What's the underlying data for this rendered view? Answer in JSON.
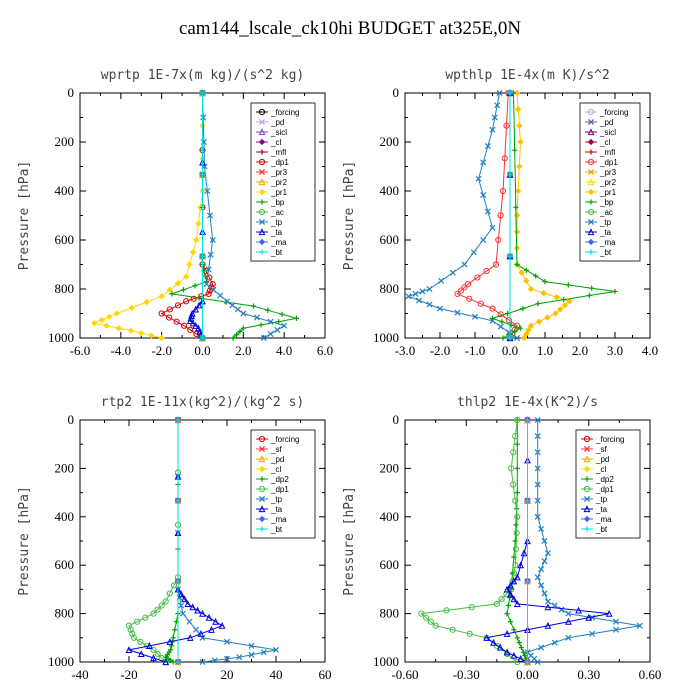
{
  "title": "cam144_lscale_ck10hi  BUDGET at325E,0N",
  "chart_data": [
    {
      "type": "line",
      "title": "wprtp  1E-7x(m kg)/(s^2 kg)",
      "ylabel": "Pressure [hPa]",
      "xlim": [
        -6,
        6
      ],
      "xticks": [
        "-6.0",
        "-4.0",
        "-2.0",
        "0.0",
        "2.0",
        "4.0",
        "6.0"
      ],
      "xtick_values": [
        -6,
        -4,
        -2,
        0,
        2,
        4,
        6
      ],
      "ylim": [
        1000,
        0
      ],
      "yticks": [
        0,
        200,
        400,
        600,
        800,
        1000
      ],
      "legend_position": "top-right",
      "series": [
        {
          "name": "_forcing",
          "color": "#000000",
          "p": [
            0,
            1000
          ],
          "v": [
            0,
            0
          ]
        },
        {
          "name": "_pd",
          "color": "#c8a0e0",
          "p": [
            0,
            1000
          ],
          "v": [
            0,
            0
          ]
        },
        {
          "name": "_sicl",
          "color": "#7050c0",
          "p": [
            0,
            1000
          ],
          "v": [
            0,
            0
          ]
        },
        {
          "name": "_cl",
          "color": "#800080",
          "p": [
            0,
            1000
          ],
          "v": [
            0,
            0
          ]
        },
        {
          "name": "_mfl",
          "color": "#a00040",
          "p": [
            0,
            1000
          ],
          "v": [
            0,
            0
          ]
        },
        {
          "name": "_dp1",
          "color": "#e00000",
          "p": [
            0,
            700,
            780,
            820,
            850,
            900,
            950,
            1000
          ],
          "v": [
            0,
            0,
            0.5,
            0.3,
            -0.8,
            -2.0,
            -0.9,
            0
          ]
        },
        {
          "name": "_pr3",
          "color": "#ff3030",
          "p": [
            0,
            1000
          ],
          "v": [
            0,
            0
          ]
        },
        {
          "name": "_pr2",
          "color": "#ffa000",
          "p": [
            0,
            1000
          ],
          "v": [
            0,
            0
          ]
        },
        {
          "name": "_pr1",
          "color": "#ffd700",
          "p": [
            0,
            400,
            600,
            750,
            830,
            900,
            940,
            970,
            1000
          ],
          "v": [
            0,
            0,
            -0.3,
            -0.8,
            -2.0,
            -4.2,
            -5.3,
            -3.5,
            -2.0
          ]
        },
        {
          "name": "_bp",
          "color": "#00a000",
          "p": [
            0,
            700,
            770,
            820,
            870,
            920,
            960,
            1000
          ],
          "v": [
            0,
            0,
            0.2,
            -1.5,
            2.5,
            4.6,
            2.0,
            1.5
          ]
        },
        {
          "name": "_ac",
          "color": "#40c040",
          "p": [
            0,
            1000
          ],
          "v": [
            0,
            0
          ]
        },
        {
          "name": "_tp",
          "color": "#2080c0",
          "p": [
            0,
            300,
            600,
            780,
            850,
            900,
            950,
            1000
          ],
          "v": [
            0,
            0.1,
            0.5,
            0.2,
            1.2,
            2.0,
            4.0,
            3.0
          ]
        },
        {
          "name": "_ta",
          "color": "#0000e0",
          "p": [
            0,
            850,
            900,
            930,
            960,
            1000
          ],
          "v": [
            0,
            0,
            -0.5,
            -0.6,
            -0.2,
            0
          ]
        },
        {
          "name": "_ma",
          "color": "#4060ff",
          "p": [
            0,
            1000
          ],
          "v": [
            0,
            0
          ]
        },
        {
          "name": "_bt",
          "color": "#00e0e0",
          "p": [
            0,
            1000
          ],
          "v": [
            0,
            0
          ]
        }
      ]
    },
    {
      "type": "line",
      "title": "wpthlp  1E-4x(m K)/s^2",
      "ylabel": "Pressure [hPa]",
      "xlim": [
        -3,
        4
      ],
      "xticks": [
        "-3.0",
        "-2.0",
        "-1.0",
        "0.0",
        "1.0",
        "2.0",
        "3.0",
        "4.0"
      ],
      "xtick_values": [
        -3,
        -2,
        -1,
        0,
        1,
        2,
        3,
        4
      ],
      "ylim": [
        1000,
        0
      ],
      "yticks": [
        0,
        200,
        400,
        600,
        800,
        1000
      ],
      "legend_position": "top-right",
      "series": [
        {
          "name": "_forcing",
          "color": "#c8a0e0",
          "p": [
            0,
            1000
          ],
          "v": [
            0,
            0
          ]
        },
        {
          "name": "_pd",
          "color": "#7050c0",
          "p": [
            0,
            1000
          ],
          "v": [
            0,
            0
          ]
        },
        {
          "name": "_sicl",
          "color": "#800080",
          "p": [
            0,
            1000
          ],
          "v": [
            0,
            0
          ]
        },
        {
          "name": "_cl",
          "color": "#a00040",
          "p": [
            0,
            1000
          ],
          "v": [
            0,
            0
          ]
        },
        {
          "name": "_mfl",
          "color": "#e00000",
          "p": [
            0,
            1000
          ],
          "v": [
            0,
            0
          ]
        },
        {
          "name": "_dp1",
          "color": "#ff3030",
          "p": [
            0,
            400,
            700,
            780,
            820,
            880,
            950,
            1000
          ],
          "v": [
            -0.05,
            -0.2,
            -0.4,
            -1.2,
            -1.5,
            -0.5,
            0.2,
            0
          ]
        },
        {
          "name": "_pr3",
          "color": "#ffa000",
          "p": [
            0,
            1000
          ],
          "v": [
            0,
            0
          ]
        },
        {
          "name": "_pr2",
          "color": "#ffd700",
          "p": [
            0,
            1000
          ],
          "v": [
            0,
            0
          ]
        },
        {
          "name": "_pr1",
          "color": "#ffc000",
          "p": [
            0,
            200,
            500,
            700,
            800,
            850,
            900,
            950,
            1000
          ],
          "v": [
            0.2,
            0.3,
            0.2,
            0.2,
            0.6,
            1.7,
            1.3,
            0.6,
            0.4
          ]
        },
        {
          "name": "_bp",
          "color": "#00a000",
          "p": [
            0,
            700,
            770,
            810,
            860,
            920,
            960,
            1000
          ],
          "v": [
            0.1,
            0.2,
            1.0,
            3.0,
            0.8,
            -0.5,
            0.3,
            -0.2
          ]
        },
        {
          "name": "_ac",
          "color": "#40c040",
          "p": [
            0,
            1000
          ],
          "v": [
            0,
            0
          ]
        },
        {
          "name": "_tp",
          "color": "#2080c0",
          "p": [
            0,
            150,
            350,
            550,
            700,
            800,
            830,
            880,
            930,
            1000
          ],
          "v": [
            -0.3,
            -0.5,
            -0.9,
            -0.5,
            -1.3,
            -2.3,
            -2.9,
            -2.0,
            -0.5,
            0.2
          ]
        },
        {
          "name": "_ta",
          "color": "#0000e0",
          "p": [
            0,
            1000
          ],
          "v": [
            0,
            0
          ]
        },
        {
          "name": "_ma",
          "color": "#4060ff",
          "p": [
            0,
            1000
          ],
          "v": [
            0,
            0
          ]
        },
        {
          "name": "_bt",
          "color": "#00e0e0",
          "p": [
            0,
            1000
          ],
          "v": [
            0,
            0
          ]
        }
      ]
    },
    {
      "type": "line",
      "title": "rtp2  1E-11x(kg^2)/(kg^2 s)",
      "ylabel": "Pressure [hPa]",
      "xlim": [
        -40,
        60
      ],
      "xticks": [
        "-40",
        "-20",
        "0",
        "20",
        "40",
        "60"
      ],
      "xtick_values": [
        -40,
        -20,
        0,
        20,
        40,
        60
      ],
      "ylim": [
        1000,
        0
      ],
      "yticks": [
        0,
        200,
        400,
        600,
        800,
        1000
      ],
      "legend_position": "top-right",
      "series": [
        {
          "name": "_forcing",
          "color": "#e00000",
          "p": [
            0,
            1000
          ],
          "v": [
            0,
            0
          ]
        },
        {
          "name": "_sf",
          "color": "#ff3030",
          "p": [
            0,
            1000
          ],
          "v": [
            0,
            0
          ]
        },
        {
          "name": "_pd",
          "color": "#ffa000",
          "p": [
            0,
            1000
          ],
          "v": [
            0,
            0
          ]
        },
        {
          "name": "_cl",
          "color": "#ffd700",
          "p": [
            0,
            1000
          ],
          "v": [
            0,
            0
          ]
        },
        {
          "name": "_dp2",
          "color": "#00a000",
          "p": [
            0,
            800,
            900,
            950,
            980,
            1000
          ],
          "v": [
            0,
            0,
            -2,
            -3,
            -5,
            -2
          ]
        },
        {
          "name": "_dp1",
          "color": "#40c040",
          "p": [
            0,
            650,
            750,
            800,
            850,
            900,
            950,
            1000
          ],
          "v": [
            0,
            0,
            -5,
            -10,
            -20,
            -18,
            -10,
            -5
          ]
        },
        {
          "name": "_tp",
          "color": "#2080c0",
          "p": [
            0,
            700,
            800,
            900,
            950,
            980,
            1000
          ],
          "v": [
            0,
            0,
            2,
            10,
            40,
            25,
            10
          ]
        },
        {
          "name": "_ta",
          "color": "#0000e0",
          "p": [
            0,
            700,
            760,
            800,
            850,
            900,
            950,
            1000
          ],
          "v": [
            0,
            0,
            4,
            10,
            18,
            5,
            -20,
            -5
          ]
        },
        {
          "name": "_ma",
          "color": "#4060ff",
          "p": [
            0,
            1000
          ],
          "v": [
            0,
            0
          ]
        },
        {
          "name": "_bt",
          "color": "#00e0e0",
          "p": [
            0,
            1000
          ],
          "v": [
            0,
            0
          ]
        }
      ]
    },
    {
      "type": "line",
      "title": "thlp2  1E-4x(K^2)/s",
      "ylabel": "Pressure [hPa]",
      "xlim": [
        -0.6,
        0.6
      ],
      "xticks": [
        "-0.60",
        "-0.30",
        "0.00",
        "0.30",
        "0.60"
      ],
      "xtick_values": [
        -0.6,
        -0.3,
        0,
        0.3,
        0.6
      ],
      "ylim": [
        1000,
        0
      ],
      "yticks": [
        0,
        200,
        400,
        600,
        800,
        1000
      ],
      "legend_position": "top-right",
      "series": [
        {
          "name": "_forcing",
          "color": "#e00000",
          "p": [
            0,
            1000
          ],
          "v": [
            0,
            0
          ]
        },
        {
          "name": "_sf",
          "color": "#ff3030",
          "p": [
            0,
            1000
          ],
          "v": [
            0,
            0
          ]
        },
        {
          "name": "_pd",
          "color": "#ffa000",
          "p": [
            0,
            1000
          ],
          "v": [
            0,
            0
          ]
        },
        {
          "name": "_cl",
          "color": "#ffd700",
          "p": [
            0,
            1000
          ],
          "v": [
            0,
            0
          ]
        },
        {
          "name": "_dp2",
          "color": "#00a000",
          "p": [
            0,
            300,
            500,
            700,
            800,
            900,
            960,
            1000
          ],
          "v": [
            -0.05,
            -0.05,
            -0.06,
            -0.08,
            -0.1,
            -0.05,
            -0.02,
            0
          ]
        },
        {
          "name": "_dp1",
          "color": "#40c040",
          "p": [
            0,
            200,
            400,
            600,
            700,
            760,
            800,
            850,
            900,
            1000
          ],
          "v": [
            -0.05,
            -0.08,
            -0.05,
            -0.06,
            -0.08,
            -0.15,
            -0.52,
            -0.45,
            -0.2,
            -0.05
          ]
        },
        {
          "name": "_tp",
          "color": "#2080c0",
          "p": [
            0,
            200,
            400,
            550,
            650,
            750,
            800,
            850,
            900,
            960,
            1000
          ],
          "v": [
            0.05,
            0.05,
            0.05,
            0.1,
            0.05,
            0.1,
            0.2,
            0.55,
            0.2,
            0,
            0.05
          ]
        },
        {
          "name": "_ta",
          "color": "#0000e0",
          "p": [
            0,
            500,
            650,
            700,
            760,
            800,
            850,
            900,
            960,
            1000
          ],
          "v": [
            0,
            0,
            -0.05,
            -0.1,
            -0.05,
            0.4,
            0.1,
            -0.2,
            -0.1,
            0
          ]
        },
        {
          "name": "_ma",
          "color": "#4060ff",
          "p": [
            0,
            1000
          ],
          "v": [
            0,
            0
          ]
        },
        {
          "name": "_bt",
          "color": "#00e0e0",
          "p": [
            0,
            1000
          ],
          "v": [
            0,
            0
          ]
        }
      ]
    }
  ]
}
